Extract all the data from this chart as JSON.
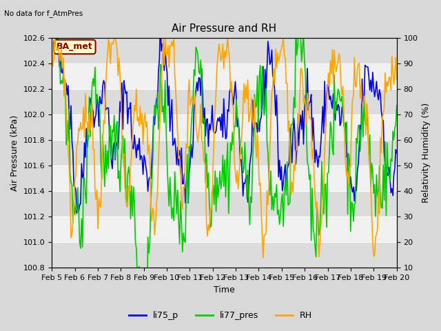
{
  "title": "Air Pressure and RH",
  "top_left_text": "No data for f_AtmPres",
  "annotation_text": "BA_met",
  "annotation_color": "#8B0000",
  "annotation_bg": "#FFFFCC",
  "xlabel": "Time",
  "ylabel_left": "Air Pressure (kPa)",
  "ylabel_right": "Relativity Humidity (%)",
  "ylim_left": [
    100.8,
    102.6
  ],
  "ylim_right": [
    10,
    100
  ],
  "yticks_left": [
    100.8,
    101.0,
    101.2,
    101.4,
    101.6,
    101.8,
    102.0,
    102.2,
    102.4,
    102.6
  ],
  "yticks_right": [
    10,
    20,
    30,
    40,
    50,
    60,
    70,
    80,
    90,
    100
  ],
  "xtick_labels": [
    "Feb 5",
    "Feb 6",
    "Feb 7",
    "Feb 8",
    "Feb 9",
    "Feb 10",
    "Feb 11",
    "Feb 12",
    "Feb 13",
    "Feb 14",
    "Feb 15",
    "Feb 16",
    "Feb 17",
    "Feb 18",
    "Feb 19",
    "Feb 20"
  ],
  "color_li75": "#0000EE",
  "color_li77": "#00CC00",
  "color_rh": "#FFA500",
  "legend_labels": [
    "li75_p",
    "li77_pres",
    "RH"
  ],
  "bg_color": "#D8D8D8",
  "plot_bg_light": "#F0F0F0",
  "plot_bg_dark": "#DCDCDC",
  "grid_color": "#FFFFFF",
  "linewidth": 1.2,
  "title_fontsize": 11,
  "label_fontsize": 9,
  "tick_fontsize": 8,
  "annot_fontsize": 9
}
